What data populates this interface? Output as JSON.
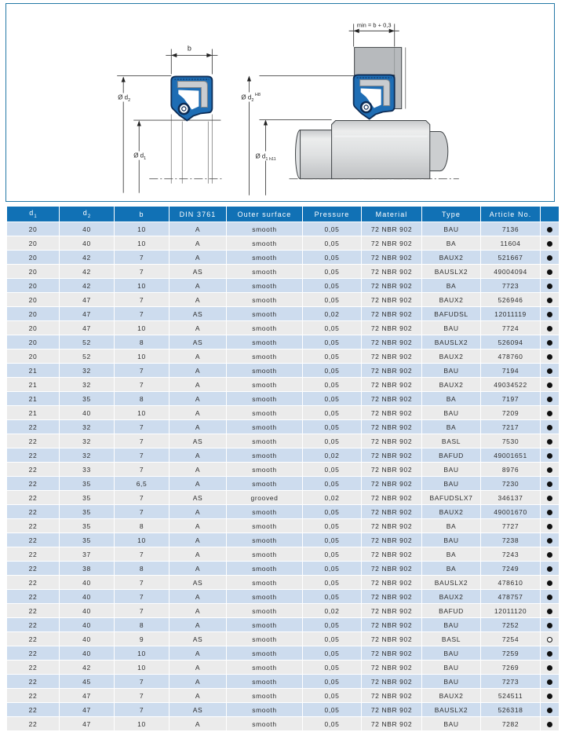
{
  "colors": {
    "header_bg": "#1171b5",
    "row_blue": "#cddcee",
    "row_gray": "#ebebeb",
    "frame_border": "#2478a6",
    "seal_blue": "#1e6db4",
    "seal_outline": "#0d2c55",
    "metal_insert_gray": "#c9ccd0",
    "housing_gray": "#b7babd",
    "shaft_gray": "#dfe1e2",
    "dot_black": "#101010"
  },
  "diagram": {
    "left": {
      "b_label": "b",
      "d2_label": "Ø d",
      "d2_sub": "2",
      "d1_label": "Ø d",
      "d1_sub": "1"
    },
    "right": {
      "min_label": "min = b + 0,3",
      "d2_label": "Ø d",
      "d2_sub": "2",
      "d2_sup": "H8",
      "d1_label": "Ø d",
      "d1_sub": "1",
      "d1_tol": " h11"
    }
  },
  "table": {
    "headers": [
      {
        "text": "d",
        "sub": "1"
      },
      {
        "text": "d",
        "sub": "2"
      },
      {
        "text": "b"
      },
      {
        "text": "DIN 3761"
      },
      {
        "text": "Outer surface"
      },
      {
        "text": "Pressure"
      },
      {
        "text": "Material"
      },
      {
        "text": "Type"
      },
      {
        "text": "Article No."
      },
      {
        "text": ""
      }
    ],
    "rows": [
      [
        "20",
        "40",
        "10",
        "A",
        "smooth",
        "0,05",
        "72 NBR 902",
        "BAU",
        "7136",
        "filled"
      ],
      [
        "20",
        "40",
        "10",
        "A",
        "smooth",
        "0,05",
        "72 NBR 902",
        "BA",
        "11604",
        "filled"
      ],
      [
        "20",
        "42",
        "7",
        "A",
        "smooth",
        "0,05",
        "72 NBR 902",
        "BAUX2",
        "521667",
        "filled"
      ],
      [
        "20",
        "42",
        "7",
        "AS",
        "smooth",
        "0,05",
        "72 NBR 902",
        "BAUSLX2",
        "49004094",
        "filled"
      ],
      [
        "20",
        "42",
        "10",
        "A",
        "smooth",
        "0,05",
        "72 NBR 902",
        "BA",
        "7723",
        "filled"
      ],
      [
        "20",
        "47",
        "7",
        "A",
        "smooth",
        "0,05",
        "72 NBR 902",
        "BAUX2",
        "526946",
        "filled"
      ],
      [
        "20",
        "47",
        "7",
        "AS",
        "smooth",
        "0,02",
        "72 NBR 902",
        "BAFUDSL",
        "12011119",
        "filled"
      ],
      [
        "20",
        "47",
        "10",
        "A",
        "smooth",
        "0,05",
        "72 NBR 902",
        "BAU",
        "7724",
        "filled"
      ],
      [
        "20",
        "52",
        "8",
        "AS",
        "smooth",
        "0,05",
        "72 NBR 902",
        "BAUSLX2",
        "526094",
        "filled"
      ],
      [
        "20",
        "52",
        "10",
        "A",
        "smooth",
        "0,05",
        "72 NBR 902",
        "BAUX2",
        "478760",
        "filled"
      ],
      [
        "21",
        "32",
        "7",
        "A",
        "smooth",
        "0,05",
        "72 NBR 902",
        "BAU",
        "7194",
        "filled"
      ],
      [
        "21",
        "32",
        "7",
        "A",
        "smooth",
        "0,05",
        "72 NBR 902",
        "BAUX2",
        "49034522",
        "filled"
      ],
      [
        "21",
        "35",
        "8",
        "A",
        "smooth",
        "0,05",
        "72 NBR 902",
        "BA",
        "7197",
        "filled"
      ],
      [
        "21",
        "40",
        "10",
        "A",
        "smooth",
        "0,05",
        "72 NBR 902",
        "BAU",
        "7209",
        "filled"
      ],
      [
        "22",
        "32",
        "7",
        "A",
        "smooth",
        "0,05",
        "72 NBR 902",
        "BA",
        "7217",
        "filled"
      ],
      [
        "22",
        "32",
        "7",
        "AS",
        "smooth",
        "0,05",
        "72 NBR 902",
        "BASL",
        "7530",
        "filled"
      ],
      [
        "22",
        "32",
        "7",
        "A",
        "smooth",
        "0,02",
        "72 NBR 902",
        "BAFUD",
        "49001651",
        "filled"
      ],
      [
        "22",
        "33",
        "7",
        "A",
        "smooth",
        "0,05",
        "72 NBR 902",
        "BAU",
        "8976",
        "filled"
      ],
      [
        "22",
        "35",
        "6,5",
        "A",
        "smooth",
        "0,05",
        "72 NBR 902",
        "BAU",
        "7230",
        "filled"
      ],
      [
        "22",
        "35",
        "7",
        "AS",
        "grooved",
        "0,02",
        "72 NBR 902",
        "BAFUDSLX7",
        "346137",
        "filled"
      ],
      [
        "22",
        "35",
        "7",
        "A",
        "smooth",
        "0,05",
        "72 NBR 902",
        "BAUX2",
        "49001670",
        "filled"
      ],
      [
        "22",
        "35",
        "8",
        "A",
        "smooth",
        "0,05",
        "72 NBR 902",
        "BA",
        "7727",
        "filled"
      ],
      [
        "22",
        "35",
        "10",
        "A",
        "smooth",
        "0,05",
        "72 NBR 902",
        "BAU",
        "7238",
        "filled"
      ],
      [
        "22",
        "37",
        "7",
        "A",
        "smooth",
        "0,05",
        "72 NBR 902",
        "BA",
        "7243",
        "filled"
      ],
      [
        "22",
        "38",
        "8",
        "A",
        "smooth",
        "0,05",
        "72 NBR 902",
        "BA",
        "7249",
        "filled"
      ],
      [
        "22",
        "40",
        "7",
        "AS",
        "smooth",
        "0,05",
        "72 NBR 902",
        "BAUSLX2",
        "478610",
        "filled"
      ],
      [
        "22",
        "40",
        "7",
        "A",
        "smooth",
        "0,05",
        "72 NBR 902",
        "BAUX2",
        "478757",
        "filled"
      ],
      [
        "22",
        "40",
        "7",
        "A",
        "smooth",
        "0,02",
        "72 NBR 902",
        "BAFUD",
        "12011120",
        "filled"
      ],
      [
        "22",
        "40",
        "8",
        "A",
        "smooth",
        "0,05",
        "72 NBR 902",
        "BAU",
        "7252",
        "filled"
      ],
      [
        "22",
        "40",
        "9",
        "AS",
        "smooth",
        "0,05",
        "72 NBR 902",
        "BASL",
        "7254",
        "open"
      ],
      [
        "22",
        "40",
        "10",
        "A",
        "smooth",
        "0,05",
        "72 NBR 902",
        "BAU",
        "7259",
        "filled"
      ],
      [
        "22",
        "42",
        "10",
        "A",
        "smooth",
        "0,05",
        "72 NBR 902",
        "BAU",
        "7269",
        "filled"
      ],
      [
        "22",
        "45",
        "7",
        "A",
        "smooth",
        "0,05",
        "72 NBR 902",
        "BAU",
        "7273",
        "filled"
      ],
      [
        "22",
        "47",
        "7",
        "A",
        "smooth",
        "0,05",
        "72 NBR 902",
        "BAUX2",
        "524511",
        "filled"
      ],
      [
        "22",
        "47",
        "7",
        "AS",
        "smooth",
        "0,05",
        "72 NBR 902",
        "BAUSLX2",
        "526318",
        "filled"
      ],
      [
        "22",
        "47",
        "10",
        "A",
        "smooth",
        "0,05",
        "72 NBR 902",
        "BAU",
        "7282",
        "filled"
      ]
    ]
  }
}
